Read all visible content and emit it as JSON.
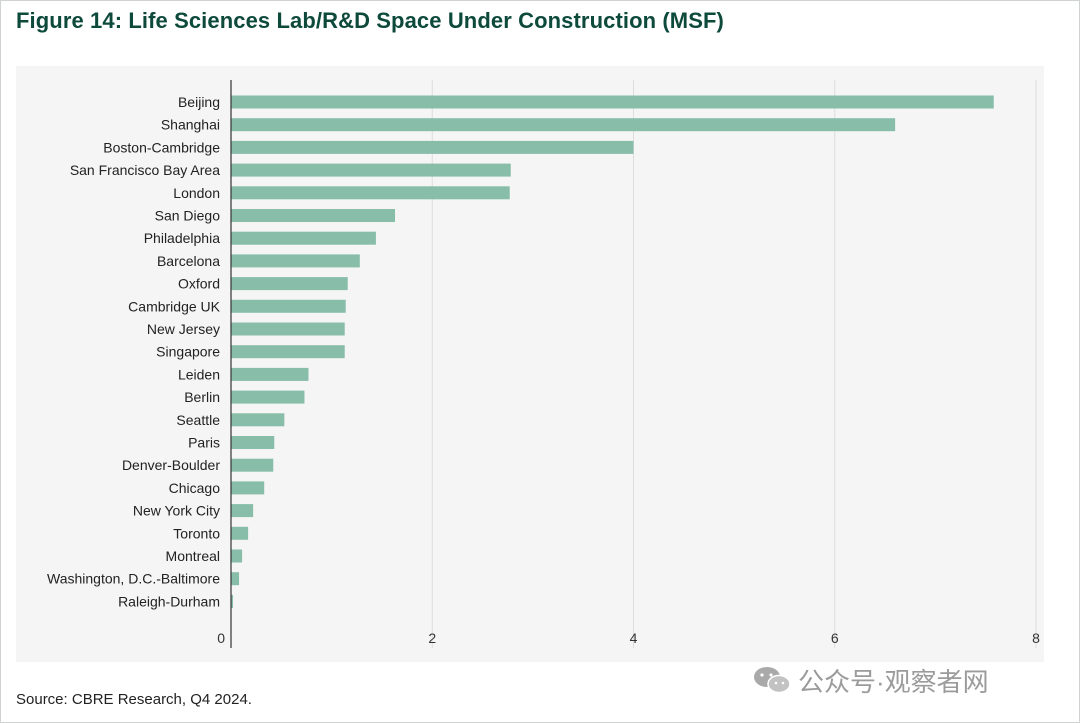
{
  "title": "Figure 14: Life Sciences Lab/R&D Space Under Construction (MSF)",
  "source": "Source: CBRE Research, Q4 2024.",
  "watermark": "公众号·观察者网",
  "colors": {
    "bar": "#88bdaa",
    "title": "#0e4a3c",
    "panel": "#f4f5f4",
    "grid": "#dcdedd"
  },
  "chart_data": {
    "type": "bar",
    "orientation": "horizontal",
    "categories": [
      "Beijing",
      "Shanghai",
      "Boston-Cambridge",
      "San Francisco Bay Area",
      "London",
      "San Diego",
      "Philadelphia",
      "Barcelona",
      "Oxford",
      "Cambridge UK",
      "New Jersey",
      "Singapore",
      "Leiden",
      "Berlin",
      "Seattle",
      "Paris",
      "Denver-Boulder",
      "Chicago",
      "New York City",
      "Toronto",
      "Montreal",
      "Washington, D.C.-Baltimore",
      "Raleigh-Durham"
    ],
    "values": [
      7.58,
      6.6,
      4.0,
      2.78,
      2.77,
      1.63,
      1.44,
      1.28,
      1.16,
      1.14,
      1.13,
      1.13,
      0.77,
      0.73,
      0.53,
      0.43,
      0.42,
      0.33,
      0.22,
      0.17,
      0.11,
      0.08,
      0.02
    ],
    "xlim": [
      0,
      8
    ],
    "xticks": [
      "0",
      "2",
      "4",
      "6",
      "8"
    ],
    "grid": true,
    "xlabel": "",
    "ylabel": ""
  }
}
